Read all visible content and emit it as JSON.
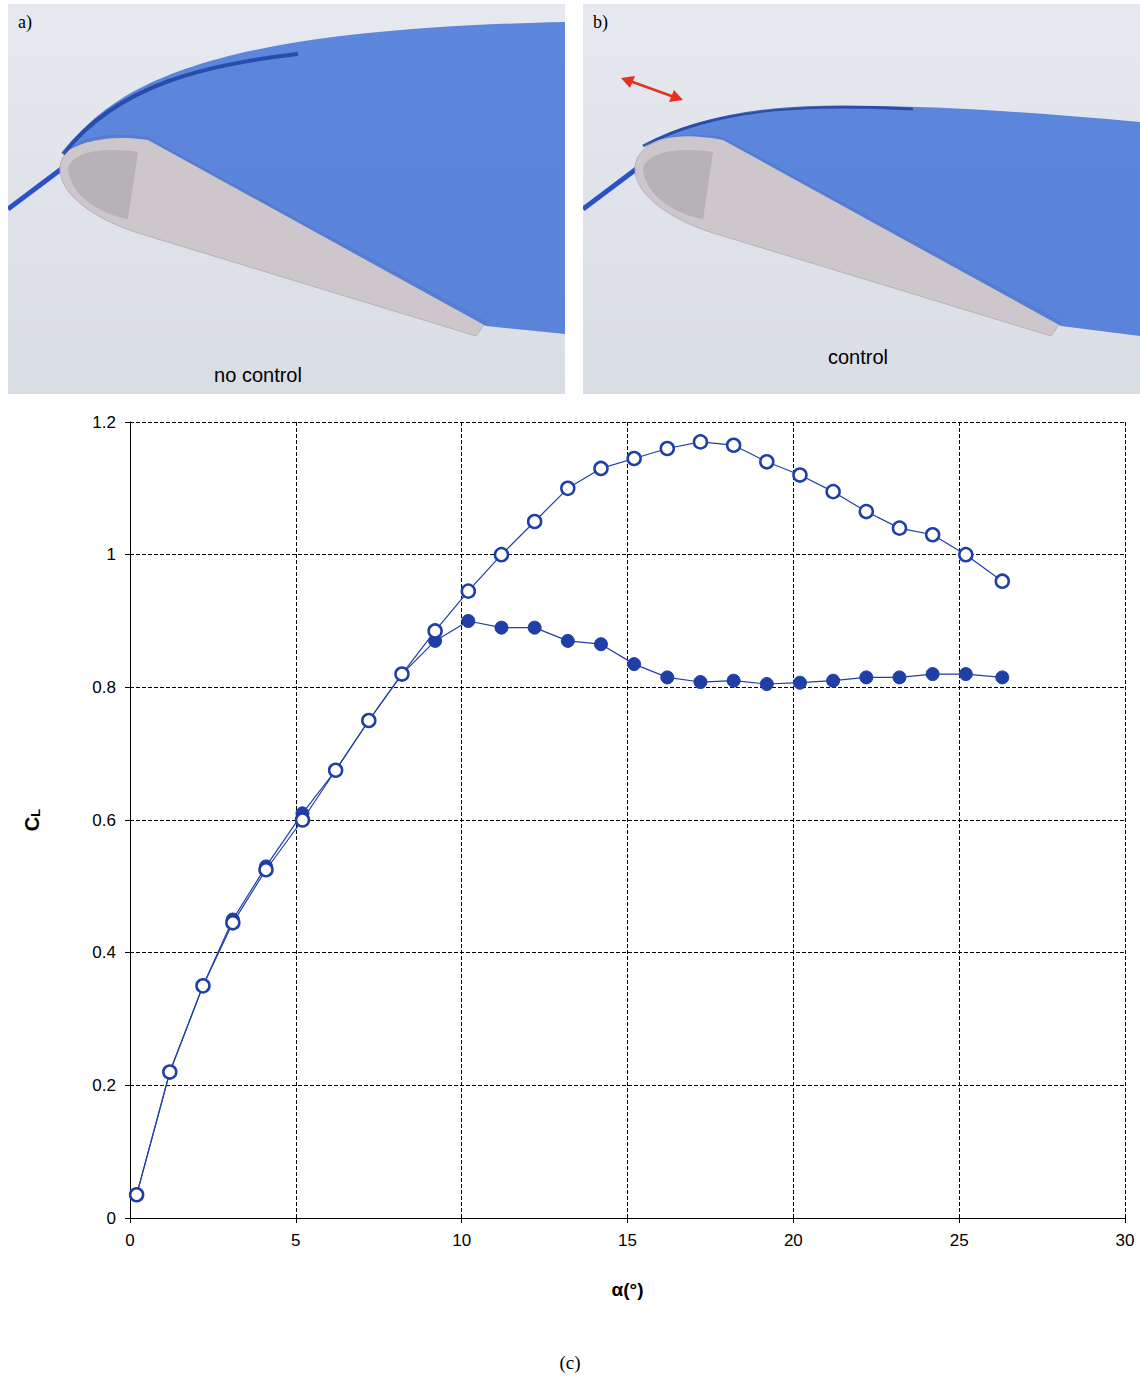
{
  "panels": [
    {
      "letter": "a)",
      "caption": "no control"
    },
    {
      "letter": "b)",
      "caption": "control"
    }
  ],
  "chart_data": {
    "type": "line",
    "caption": "(c)",
    "xlabel": "α(°)",
    "ylabel": "CL",
    "xlim": [
      0,
      30
    ],
    "xticks": [
      0,
      5,
      10,
      15,
      20,
      25,
      30
    ],
    "ylim": [
      0,
      1.2
    ],
    "yticks": [
      0,
      0.2,
      0.4,
      0.6,
      0.8,
      1,
      1.2
    ],
    "grid": true,
    "series": [
      {
        "color": "#1f3fa6",
        "marker": "filled circle",
        "x": [
          0.2,
          1.2,
          2.2,
          3.1,
          4.1,
          5.2,
          6.2,
          7.2,
          8.2,
          9.2,
          10.2,
          11.2,
          12.2,
          13.2,
          14.2,
          15.2,
          16.2,
          17.2,
          18.2,
          19.2,
          20.2,
          21.2,
          22.2,
          23.2,
          24.2,
          25.2,
          26.3
        ],
        "values": [
          0.035,
          0.22,
          0.35,
          0.45,
          0.53,
          0.61,
          0.675,
          0.75,
          0.82,
          0.87,
          0.9,
          0.89,
          0.89,
          0.87,
          0.865,
          0.835,
          0.815,
          0.808,
          0.81,
          0.805,
          0.807,
          0.81,
          0.815,
          0.815,
          0.82,
          0.82,
          0.815
        ]
      },
      {
        "color": "#1f3fa6",
        "marker": "open circle",
        "x": [
          0.2,
          1.2,
          2.2,
          3.1,
          4.1,
          5.2,
          6.2,
          7.2,
          8.2,
          9.2,
          10.2,
          11.2,
          12.2,
          13.2,
          14.2,
          15.2,
          16.2,
          17.2,
          18.2,
          19.2,
          20.2,
          21.2,
          22.2,
          23.2,
          24.2,
          25.2,
          26.3
        ],
        "values": [
          0.035,
          0.22,
          0.35,
          0.445,
          0.525,
          0.6,
          0.675,
          0.75,
          0.82,
          0.885,
          0.945,
          1.0,
          1.05,
          1.1,
          1.13,
          1.145,
          1.16,
          1.17,
          1.165,
          1.14,
          1.12,
          1.095,
          1.065,
          1.04,
          1.03,
          1.0,
          0.96
        ]
      }
    ]
  }
}
